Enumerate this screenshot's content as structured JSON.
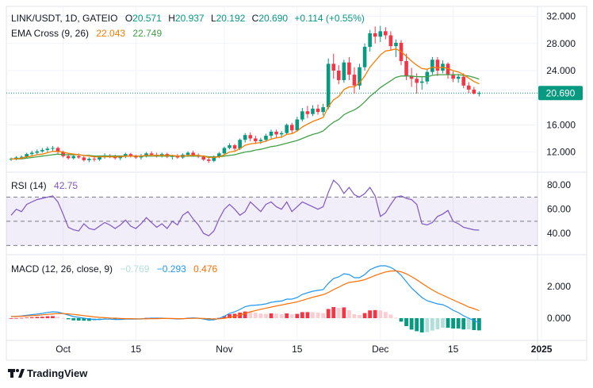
{
  "header": {
    "symbol": "LINK/USDT, 1D, GATEIO",
    "open_label": "O",
    "open": "20.571",
    "high_label": "H",
    "high": "20.937",
    "low_label": "L",
    "low": "20.192",
    "close_label": "C",
    "close": "20.690",
    "change": "+0.114 (+0.55%)",
    "ema_title": "EMA Cross (9, 26)",
    "ema_fast": "22.043",
    "ema_slow": "22.749"
  },
  "rsi_header": {
    "title": "RSI (14)",
    "value": "42.75"
  },
  "macd_header": {
    "title": "MACD (12, 26, close, 9)",
    "hist": "−0.769",
    "macd": "−0.293",
    "signal": "0.476"
  },
  "footer": {
    "brand": "TradingView"
  },
  "colors": {
    "up": "#089981",
    "down": "#f23645",
    "ema_fast": "#f57c00",
    "ema_slow": "#43a047",
    "rsi": "#7e57c2",
    "macd": "#2196f3",
    "signal": "#ff6d00",
    "current_price": "#089981"
  },
  "chart_data": [
    {
      "type": "candlestick",
      "title": "LINK/USDT, 1D, GATEIO",
      "price_axis_ticks": [
        12.0,
        16.0,
        20.0,
        24.0,
        28.0,
        32.0
      ],
      "price_axis_labels": [
        "12.000",
        "16.000",
        "24.000",
        "28.000",
        "32.000"
      ],
      "current_price_label": "20.690",
      "y_range": [
        9.5,
        33
      ],
      "x_tick_labels": [
        {
          "label": "Oct",
          "day": 0
        },
        {
          "label": "15",
          "day": 14
        },
        {
          "label": "Nov",
          "day": 31
        },
        {
          "label": "15",
          "day": 45
        },
        {
          "label": "Dec",
          "day": 61
        },
        {
          "label": "15",
          "day": 75
        },
        {
          "label": "2025",
          "day": 92
        }
      ],
      "first_day": -10,
      "candles": [
        [
          10.9,
          11.2,
          10.7,
          11.0
        ],
        [
          11.0,
          11.4,
          10.8,
          11.2
        ],
        [
          11.2,
          11.5,
          11.0,
          11.3
        ],
        [
          11.3,
          11.9,
          11.1,
          11.7
        ],
        [
          11.7,
          12.2,
          11.4,
          11.9
        ],
        [
          11.9,
          12.4,
          11.6,
          12.1
        ],
        [
          12.1,
          12.6,
          11.9,
          12.3
        ],
        [
          12.3,
          12.8,
          12.0,
          12.5
        ],
        [
          12.5,
          12.9,
          12.1,
          12.6
        ],
        [
          12.6,
          12.8,
          11.8,
          12.0
        ],
        [
          12.0,
          12.2,
          11.2,
          11.4
        ],
        [
          11.4,
          11.7,
          10.9,
          11.1
        ],
        [
          11.1,
          11.6,
          10.9,
          11.4
        ],
        [
          11.4,
          11.8,
          11.0,
          11.2
        ],
        [
          11.2,
          11.4,
          10.6,
          10.8
        ],
        [
          10.8,
          11.2,
          10.5,
          11.0
        ],
        [
          11.0,
          11.3,
          10.6,
          10.9
        ],
        [
          10.9,
          11.5,
          10.7,
          11.3
        ],
        [
          11.3,
          11.8,
          11.0,
          11.5
        ],
        [
          11.5,
          11.7,
          11.1,
          11.3
        ],
        [
          11.3,
          11.6,
          10.9,
          11.1
        ],
        [
          11.1,
          11.5,
          10.8,
          11.3
        ],
        [
          11.3,
          11.9,
          11.1,
          11.7
        ],
        [
          11.7,
          11.9,
          11.2,
          11.4
        ],
        [
          11.4,
          11.6,
          11.0,
          11.2
        ],
        [
          11.2,
          11.7,
          10.9,
          11.5
        ],
        [
          11.5,
          12.0,
          11.2,
          11.8
        ],
        [
          11.8,
          12.1,
          11.4,
          11.6
        ],
        [
          11.6,
          11.9,
          11.2,
          11.5
        ],
        [
          11.5,
          11.9,
          11.2,
          11.7
        ],
        [
          11.7,
          11.9,
          11.1,
          11.3
        ],
        [
          11.3,
          11.6,
          10.9,
          11.4
        ],
        [
          11.4,
          11.7,
          11.0,
          11.2
        ],
        [
          11.2,
          11.8,
          11.0,
          11.6
        ],
        [
          11.6,
          12.1,
          11.3,
          11.9
        ],
        [
          11.9,
          12.2,
          11.3,
          11.5
        ],
        [
          11.5,
          11.8,
          11.1,
          11.3
        ],
        [
          11.3,
          11.5,
          10.7,
          10.9
        ],
        [
          10.9,
          11.2,
          10.4,
          10.7
        ],
        [
          10.7,
          11.5,
          10.5,
          11.3
        ],
        [
          11.3,
          12.0,
          11.1,
          11.8
        ],
        [
          11.8,
          12.8,
          11.6,
          12.6
        ],
        [
          12.6,
          13.3,
          12.4,
          13.0
        ],
        [
          13.0,
          13.2,
          12.2,
          12.5
        ],
        [
          12.5,
          14.0,
          12.3,
          13.8
        ],
        [
          13.8,
          14.8,
          13.4,
          14.5
        ],
        [
          14.5,
          14.9,
          13.6,
          14.0
        ],
        [
          14.0,
          14.4,
          13.2,
          13.6
        ],
        [
          13.6,
          14.1,
          13.2,
          13.8
        ],
        [
          13.8,
          14.7,
          13.5,
          14.4
        ],
        [
          14.4,
          15.3,
          14.0,
          15.0
        ],
        [
          15.0,
          15.3,
          14.2,
          14.6
        ],
        [
          14.6,
          15.1,
          14.1,
          14.8
        ],
        [
          14.8,
          16.2,
          14.6,
          16.0
        ],
        [
          16.0,
          16.3,
          14.8,
          15.2
        ],
        [
          15.2,
          17.2,
          15.0,
          16.8
        ],
        [
          16.8,
          18.5,
          16.5,
          18.0
        ],
        [
          18.0,
          18.8,
          17.0,
          17.6
        ],
        [
          17.6,
          18.9,
          17.3,
          18.4
        ],
        [
          18.4,
          19.0,
          17.5,
          17.9
        ],
        [
          17.9,
          19.1,
          17.4,
          18.6
        ],
        [
          18.6,
          25.8,
          18.3,
          25.0
        ],
        [
          25.0,
          26.5,
          22.8,
          24.0
        ],
        [
          24.0,
          24.8,
          22.0,
          22.6
        ],
        [
          22.6,
          25.6,
          22.2,
          25.2
        ],
        [
          25.2,
          26.0,
          22.6,
          23.4
        ],
        [
          23.4,
          24.5,
          20.6,
          21.8
        ],
        [
          21.8,
          25.0,
          21.2,
          24.5
        ],
        [
          24.5,
          28.0,
          24.0,
          27.5
        ],
        [
          27.5,
          30.0,
          26.8,
          29.5
        ],
        [
          29.5,
          30.5,
          28.0,
          29.0
        ],
        [
          29.0,
          30.6,
          28.2,
          29.8
        ],
        [
          29.8,
          30.4,
          28.6,
          29.2
        ],
        [
          29.2,
          29.8,
          27.0,
          27.6
        ],
        [
          27.6,
          28.6,
          26.0,
          28.1
        ],
        [
          28.1,
          28.5,
          24.8,
          25.4
        ],
        [
          25.4,
          26.5,
          22.6,
          23.2
        ],
        [
          23.2,
          24.4,
          21.6,
          22.8
        ],
        [
          22.8,
          23.6,
          20.6,
          22.2
        ],
        [
          22.2,
          23.0,
          21.2,
          22.4
        ],
        [
          22.4,
          24.2,
          22.0,
          23.8
        ],
        [
          23.8,
          26.0,
          23.4,
          25.6
        ],
        [
          25.6,
          26.0,
          23.2,
          24.0
        ],
        [
          24.0,
          25.5,
          23.6,
          25.0
        ],
        [
          25.0,
          25.2,
          22.8,
          23.4
        ],
        [
          23.4,
          23.9,
          22.3,
          22.8
        ],
        [
          22.8,
          23.5,
          22.2,
          23.1
        ],
        [
          23.1,
          23.6,
          21.4,
          21.8
        ],
        [
          21.8,
          22.3,
          20.7,
          21.2
        ],
        [
          21.2,
          21.6,
          20.5,
          20.6
        ],
        [
          20.571,
          20.937,
          20.192,
          20.69
        ]
      ],
      "ema_fast_values": [
        11.0,
        11.0,
        11.1,
        11.3,
        11.4,
        11.6,
        11.7,
        11.9,
        12.1,
        12.1,
        12.0,
        11.8,
        11.7,
        11.6,
        11.5,
        11.4,
        11.3,
        11.3,
        11.3,
        11.3,
        11.3,
        11.3,
        11.4,
        11.4,
        11.4,
        11.4,
        11.5,
        11.5,
        11.5,
        11.5,
        11.5,
        11.5,
        11.4,
        11.4,
        11.5,
        11.5,
        11.5,
        11.4,
        11.2,
        11.2,
        11.3,
        11.6,
        12.0,
        12.1,
        12.5,
        13.0,
        13.2,
        13.3,
        13.4,
        13.6,
        13.9,
        14.1,
        14.2,
        14.6,
        14.7,
        15.1,
        15.7,
        16.1,
        16.5,
        16.8,
        17.1,
        18.7,
        19.7,
        20.2,
        21.2,
        21.6,
        21.6,
        22.2,
        23.2,
        24.5,
        25.4,
        26.3,
        26.9,
        27.0,
        27.2,
        26.8,
        26.1,
        25.4,
        24.8,
        24.3,
        24.2,
        24.5,
        24.4,
        24.5,
        24.3,
        24.0,
        23.8,
        23.4,
        22.9,
        22.4,
        22.04
      ],
      "ema_slow_values": [
        11.0,
        11.0,
        11.0,
        11.1,
        11.2,
        11.3,
        11.4,
        11.5,
        11.6,
        11.7,
        11.6,
        11.6,
        11.6,
        11.6,
        11.5,
        11.5,
        11.4,
        11.4,
        11.4,
        11.4,
        11.4,
        11.4,
        11.4,
        11.4,
        11.4,
        11.4,
        11.4,
        11.4,
        11.4,
        11.4,
        11.4,
        11.4,
        11.4,
        11.4,
        11.4,
        11.4,
        11.4,
        11.4,
        11.3,
        11.3,
        11.3,
        11.4,
        11.5,
        11.6,
        11.8,
        12.0,
        12.1,
        12.3,
        12.4,
        12.6,
        12.8,
        12.9,
        13.1,
        13.3,
        13.5,
        13.7,
        14.0,
        14.3,
        14.6,
        14.8,
        15.1,
        15.8,
        16.4,
        16.8,
        17.5,
        17.9,
        18.2,
        18.7,
        19.4,
        20.2,
        20.8,
        21.5,
        22.0,
        22.5,
        23.0,
        23.2,
        23.2,
        23.2,
        23.1,
        23.1,
        23.1,
        23.3,
        23.4,
        23.4,
        23.4,
        23.4,
        23.4,
        23.3,
        23.2,
        23.0,
        22.749
      ]
    },
    {
      "type": "line",
      "title": "RSI (14)",
      "y_axis_labels": [
        "40.00",
        "60.00",
        "80.00"
      ],
      "y_range": [
        25,
        88
      ],
      "band": [
        30,
        70
      ],
      "midline": 50,
      "values": [
        55,
        60,
        58,
        64,
        66,
        68,
        69,
        70,
        71,
        66,
        56,
        45,
        43,
        42,
        48,
        44,
        43,
        46,
        49,
        47,
        44,
        47,
        51,
        46,
        44,
        48,
        53,
        49,
        45,
        48,
        44,
        50,
        47,
        55,
        58,
        52,
        47,
        40,
        38,
        42,
        52,
        60,
        64,
        60,
        55,
        58,
        66,
        62,
        58,
        64,
        66,
        62,
        60,
        66,
        58,
        62,
        66,
        64,
        62,
        60,
        62,
        74,
        84,
        80,
        73,
        78,
        72,
        70,
        73,
        78,
        71,
        54,
        57,
        64,
        70,
        71,
        69,
        68,
        64,
        48,
        47,
        49,
        54,
        56,
        59,
        50,
        48,
        45,
        44,
        43,
        42.75
      ]
    },
    {
      "type": "line",
      "title": "MACD (12, 26, close, 9)",
      "y_axis_labels": [
        "0.000",
        "2.000"
      ],
      "y_range": [
        -1.2,
        3.8
      ],
      "macd_values": [
        0.1,
        0.12,
        0.14,
        0.18,
        0.22,
        0.26,
        0.3,
        0.36,
        0.4,
        0.38,
        0.3,
        0.2,
        0.1,
        0.05,
        0.0,
        -0.05,
        -0.08,
        -0.08,
        -0.06,
        -0.06,
        -0.08,
        -0.08,
        -0.06,
        -0.06,
        -0.06,
        -0.05,
        -0.02,
        0.0,
        0.0,
        0.0,
        -0.02,
        -0.03,
        -0.05,
        -0.04,
        0.0,
        0.02,
        0.0,
        -0.05,
        -0.12,
        -0.1,
        -0.02,
        0.12,
        0.3,
        0.4,
        0.55,
        0.72,
        0.8,
        0.82,
        0.85,
        0.9,
        1.0,
        1.05,
        1.08,
        1.2,
        1.2,
        1.3,
        1.5,
        1.6,
        1.7,
        1.75,
        1.8,
        2.2,
        2.5,
        2.6,
        2.8,
        2.75,
        2.55,
        2.55,
        2.75,
        3.05,
        3.2,
        3.3,
        3.3,
        3.2,
        3.0,
        2.7,
        2.3,
        1.9,
        1.6,
        1.3,
        1.1,
        1.0,
        0.9,
        0.85,
        0.7,
        0.5,
        0.35,
        0.15,
        0.0,
        -0.15,
        -0.293
      ],
      "signal_values": [
        0.1,
        0.11,
        0.12,
        0.14,
        0.16,
        0.18,
        0.21,
        0.24,
        0.27,
        0.29,
        0.29,
        0.27,
        0.24,
        0.2,
        0.16,
        0.12,
        0.08,
        0.05,
        0.03,
        0.01,
        0.0,
        -0.02,
        -0.03,
        -0.03,
        -0.04,
        -0.04,
        -0.04,
        -0.03,
        -0.03,
        -0.02,
        -0.02,
        -0.02,
        -0.03,
        -0.03,
        -0.02,
        -0.01,
        -0.01,
        -0.02,
        -0.04,
        -0.05,
        -0.04,
        -0.01,
        0.05,
        0.12,
        0.2,
        0.3,
        0.4,
        0.48,
        0.56,
        0.63,
        0.7,
        0.77,
        0.83,
        0.9,
        0.96,
        1.03,
        1.12,
        1.22,
        1.32,
        1.4,
        1.48,
        1.62,
        1.8,
        1.95,
        2.12,
        2.25,
        2.3,
        2.35,
        2.43,
        2.56,
        2.69,
        2.81,
        2.91,
        2.97,
        2.98,
        2.92,
        2.8,
        2.62,
        2.42,
        2.2,
        1.98,
        1.78,
        1.6,
        1.45,
        1.3,
        1.15,
        1.0,
        0.86,
        0.7,
        0.6,
        0.476
      ]
    }
  ]
}
